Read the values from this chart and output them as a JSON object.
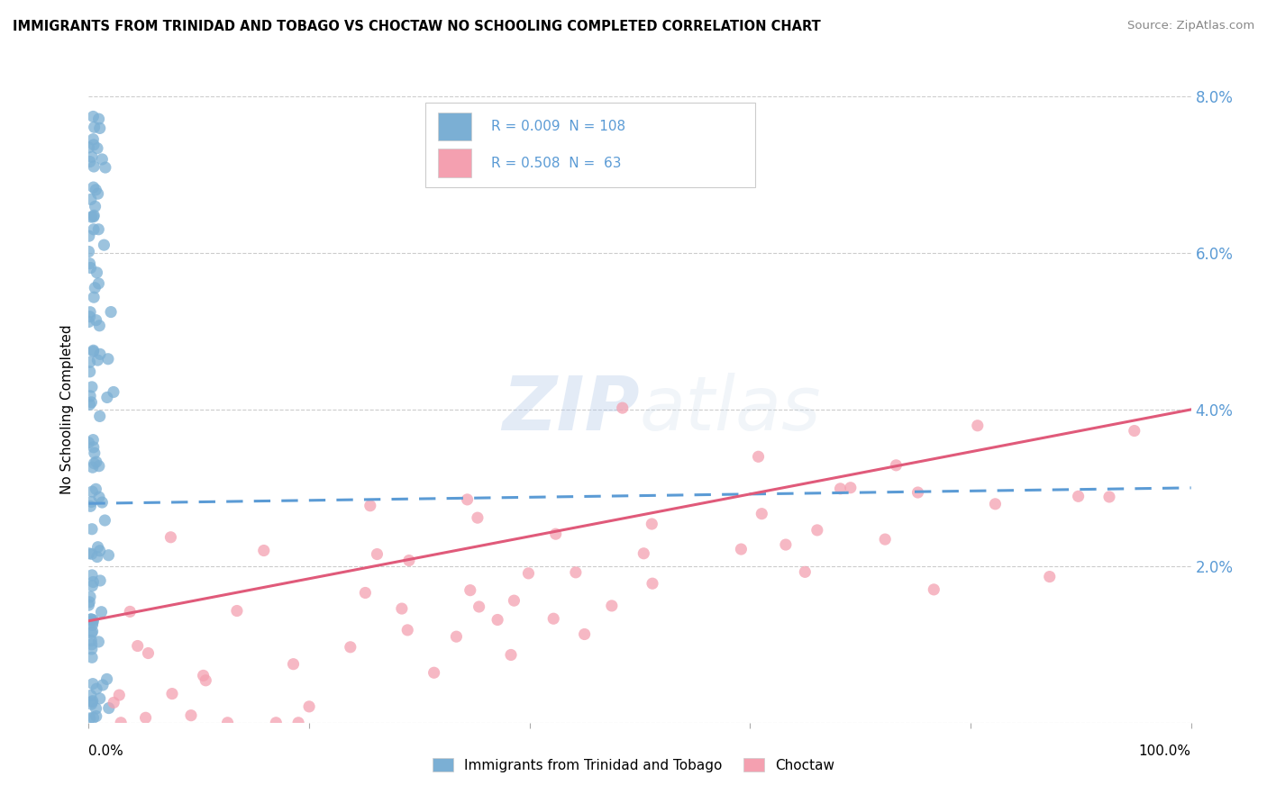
{
  "title": "IMMIGRANTS FROM TRINIDAD AND TOBAGO VS CHOCTAW NO SCHOOLING COMPLETED CORRELATION CHART",
  "source": "Source: ZipAtlas.com",
  "ylabel": "No Schooling Completed",
  "legend_label1": "Immigrants from Trinidad and Tobago",
  "legend_label2": "Choctaw",
  "R1": 0.009,
  "N1": 108,
  "R2": 0.508,
  "N2": 63,
  "xlim": [
    0.0,
    1.0
  ],
  "ylim": [
    0.0,
    0.08
  ],
  "yticks": [
    0.0,
    0.02,
    0.04,
    0.06,
    0.08
  ],
  "ytick_labels": [
    "",
    "2.0%",
    "4.0%",
    "6.0%",
    "8.0%"
  ],
  "color1": "#7bafd4",
  "color2": "#f4a0b0",
  "line_color1": "#5b9bd5",
  "line_color2": "#e05a7a",
  "background_color": "#ffffff",
  "watermark_zip": "ZIP",
  "watermark_atlas": "atlas",
  "blue_line_x": [
    0.0,
    1.0
  ],
  "blue_line_y": [
    0.028,
    0.03
  ],
  "pink_line_x": [
    0.0,
    1.0
  ],
  "pink_line_y": [
    0.013,
    0.04
  ]
}
